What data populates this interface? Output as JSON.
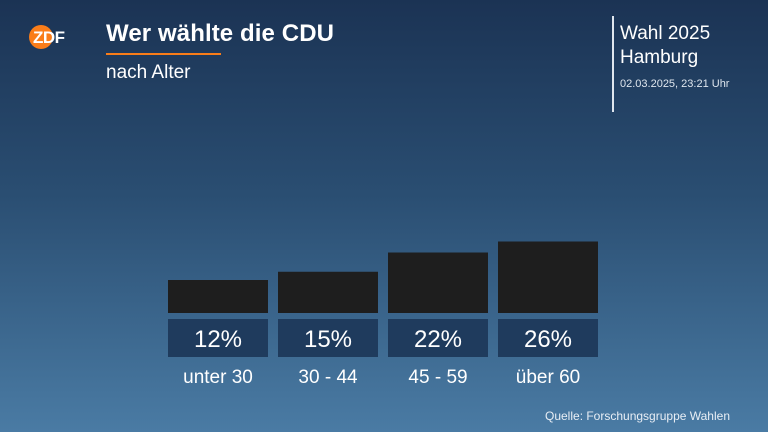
{
  "brand": {
    "logo_text": "ZDF",
    "accent_color": "#fa7d19"
  },
  "header": {
    "title": "Wer wählte die CDU",
    "subtitle": "nach Alter"
  },
  "election": {
    "line1": "Wahl 2025",
    "line2": "Hamburg",
    "timestamp": "02.03.2025, 23:21 Uhr"
  },
  "source": "Quelle: Forschungsgruppe Wahlen",
  "colors": {
    "bar": "#1e1e1e",
    "label_box": "#1f3b5d",
    "text": "#ffffff"
  },
  "chart_data": {
    "type": "bar",
    "title": "Wer wählte die CDU",
    "subtitle": "nach Alter",
    "categories": [
      "unter 30",
      "30 - 44",
      "45 - 59",
      "über 60"
    ],
    "values": [
      12,
      15,
      22,
      26
    ],
    "value_labels": [
      "12%",
      "15%",
      "22%",
      "26%"
    ],
    "unit": "%",
    "ylim": [
      0,
      100
    ],
    "grid": false,
    "legend": "none"
  }
}
